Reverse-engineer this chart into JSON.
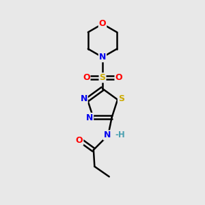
{
  "bg_color": "#e8e8e8",
  "atom_colors": {
    "C": "#000000",
    "N": "#0000ee",
    "O": "#ff0000",
    "S": "#ccaa00",
    "H": "#4aa0b0"
  },
  "bond_color": "#000000",
  "figsize": [
    3.0,
    3.0
  ],
  "dpi": 100
}
